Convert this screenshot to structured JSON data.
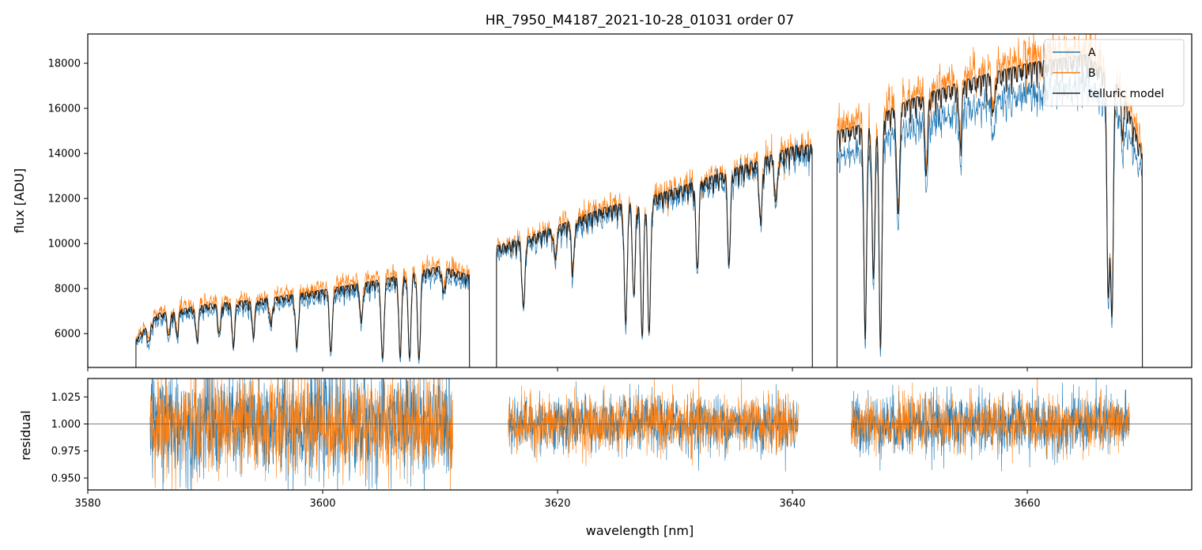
{
  "colors": {
    "A": "#1f77b4",
    "B": "#ff7f0e",
    "model": "#222222",
    "unity": "#555555"
  },
  "chart_data": [
    {
      "type": "line",
      "panel": "spectrum",
      "title": "HR_7950_M4187_2021-10-28_01031  order 07",
      "xlabel": "",
      "ylabel": "flux [ADU]",
      "xlim": [
        3580,
        3674
      ],
      "ylim": [
        4500,
        19300
      ],
      "xticks": [
        3580,
        3600,
        3620,
        3640,
        3660
      ],
      "yticks": [
        6000,
        8000,
        10000,
        12000,
        14000,
        16000,
        18000
      ],
      "xtick_labels_shown": false,
      "legend": {
        "placement": "top-right",
        "entries": [
          "A",
          "B",
          "telluric model"
        ]
      },
      "segments": [
        {
          "x_range": [
            3584.1,
            3612.5
          ],
          "continuum": [
            [
              3584.1,
              5800
            ],
            [
              3586,
              6900
            ],
            [
              3590,
              7300
            ],
            [
              3595,
              7550
            ],
            [
              3600,
              7950
            ],
            [
              3605,
              8400
            ],
            [
              3610,
              9000
            ],
            [
              3612.5,
              8600
            ]
          ]
        },
        {
          "x_range": [
            3614.8,
            3641.7
          ],
          "continuum": [
            [
              3614.8,
              9900
            ],
            [
              3617,
              10200
            ],
            [
              3620,
              10800
            ],
            [
              3624,
              11600
            ],
            [
              3628,
              12100
            ],
            [
              3632,
              12800
            ],
            [
              3636,
              13500
            ],
            [
              3640,
              14300
            ],
            [
              3641.7,
              14400
            ]
          ]
        },
        {
          "x_range": [
            3643.8,
            3669.8
          ],
          "continuum": [
            [
              3643.8,
              15000
            ],
            [
              3646,
              15300
            ],
            [
              3650,
              16400
            ],
            [
              3655,
              17300
            ],
            [
              3660,
              18000
            ],
            [
              3665,
              18400
            ],
            [
              3668,
              17000
            ],
            [
              3669.8,
              14000
            ]
          ]
        }
      ],
      "absorption_lines": [
        [
          3585.2,
          0.12
        ],
        [
          3586.9,
          0.15
        ],
        [
          3587.6,
          0.15
        ],
        [
          3589.3,
          0.2
        ],
        [
          3591.2,
          0.18
        ],
        [
          3592.4,
          0.25
        ],
        [
          3594.1,
          0.2
        ],
        [
          3595.6,
          0.15
        ],
        [
          3597.8,
          0.3
        ],
        [
          3600.7,
          0.35
        ],
        [
          3603.3,
          0.2
        ],
        [
          3605.1,
          0.42
        ],
        [
          3606.6,
          0.4
        ],
        [
          3607.4,
          0.42
        ],
        [
          3608.2,
          0.45
        ],
        [
          3610.3,
          0.12
        ],
        [
          3617.1,
          0.3
        ],
        [
          3619.8,
          0.12
        ],
        [
          3621.3,
          0.2
        ],
        [
          3625.8,
          0.45
        ],
        [
          3626.5,
          0.35
        ],
        [
          3627.2,
          0.5
        ],
        [
          3627.8,
          0.5
        ],
        [
          3631.9,
          0.3
        ],
        [
          3634.6,
          0.3
        ],
        [
          3637.3,
          0.2
        ],
        [
          3638.6,
          0.15
        ],
        [
          3646.2,
          0.6
        ],
        [
          3646.9,
          0.45
        ],
        [
          3647.5,
          0.65
        ],
        [
          3649.0,
          0.3
        ],
        [
          3651.4,
          0.2
        ],
        [
          3654.3,
          0.15
        ],
        [
          3657.1,
          0.1
        ],
        [
          3666.9,
          0.55
        ],
        [
          3667.2,
          0.6
        ],
        [
          3668.1,
          0.1
        ]
      ],
      "series": [
        {
          "name": "A",
          "scale": [
            0.97,
            0.98,
            0.935
          ],
          "noise": 0.035
        },
        {
          "name": "B",
          "scale": [
            1.025,
            1.01,
            1.025
          ],
          "noise": 0.045
        },
        {
          "name": "telluric model",
          "scale": [
            1.0,
            1.0,
            1.0
          ],
          "noise": 0
        }
      ]
    },
    {
      "type": "line",
      "panel": "residual",
      "title": "",
      "xlabel": "wavelength [nm]",
      "ylabel": "residual",
      "xlim": [
        3580,
        3674
      ],
      "ylim": [
        0.939,
        1.042
      ],
      "xticks": [
        3580,
        3600,
        3620,
        3640,
        3660
      ],
      "yticks": [
        0.95,
        0.975,
        1.0,
        1.025
      ],
      "ytick_labels": [
        "0.950",
        "0.975",
        "1.000",
        "1.025"
      ],
      "reference_line": 1.0,
      "segments": [
        [
          3585.3,
          3611.1
        ],
        [
          3615.8,
          3640.5
        ],
        [
          3645.0,
          3668.7
        ]
      ],
      "series": [
        {
          "name": "A",
          "noise_std": [
            0.025,
            0.013,
            0.014
          ]
        },
        {
          "name": "B",
          "noise_std": [
            0.022,
            0.013,
            0.012
          ]
        }
      ]
    }
  ]
}
